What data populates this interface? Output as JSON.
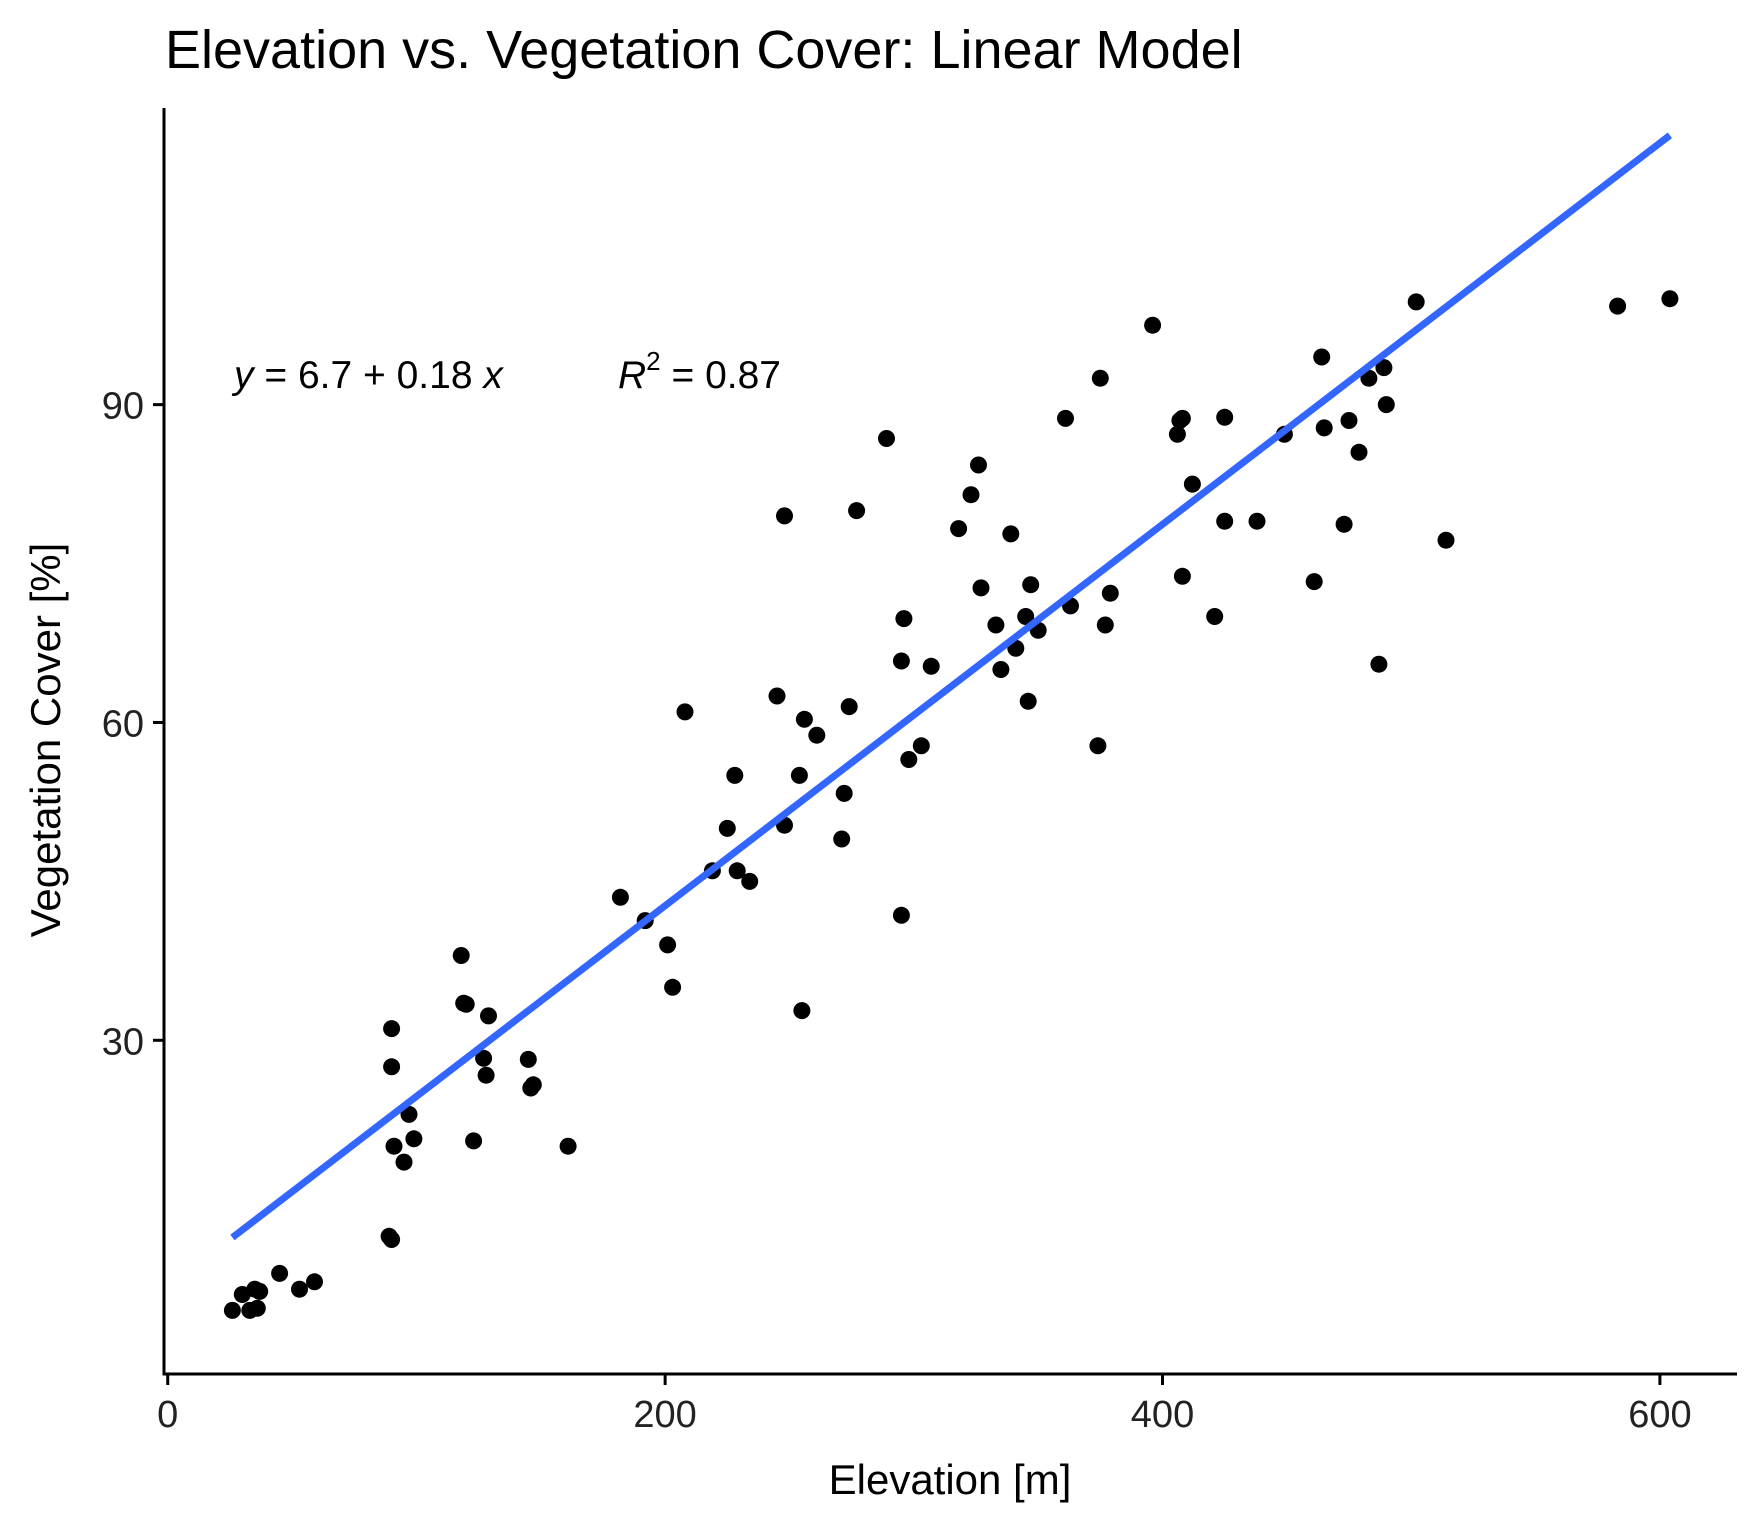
{
  "chart_data": {
    "type": "scatter",
    "title": "Elevation vs. Vegetation Cover: Linear Model",
    "xlabel": "Elevation [m]",
    "ylabel": "Vegetation Cover [%]",
    "xlim": [
      -1.5,
      631
    ],
    "ylim": [
      -1.5,
      118
    ],
    "xticks": [
      0,
      200,
      400,
      600
    ],
    "yticks": [
      30,
      60,
      90
    ],
    "grid": false,
    "point_color": "#000000",
    "line_color": "#3366FF",
    "regression": {
      "intercept": 6.7,
      "slope": 0.18,
      "r_squared": 0.87,
      "x_range": [
        26,
        604
      ],
      "equation_parts": {
        "y": "y",
        "eq": " = 6.7 + 0.18 ",
        "x": "x"
      },
      "r2_parts": {
        "r": "R",
        "sup": "2",
        "eq": " = 0.87"
      }
    },
    "points": [
      [
        26,
        4.5
      ],
      [
        30,
        6
      ],
      [
        33,
        4.5
      ],
      [
        35,
        6.5
      ],
      [
        36,
        4.7
      ],
      [
        37,
        6.3
      ],
      [
        45,
        8.0
      ],
      [
        53,
        6.5
      ],
      [
        59,
        7.2
      ],
      [
        89,
        11.5
      ],
      [
        90,
        11.2
      ],
      [
        90,
        27.5
      ],
      [
        90,
        31.1
      ],
      [
        91,
        20.0
      ],
      [
        95,
        18.5
      ],
      [
        97,
        23.0
      ],
      [
        99,
        20.7
      ],
      [
        118,
        38.0
      ],
      [
        119,
        33.5
      ],
      [
        120,
        33.4
      ],
      [
        123,
        20.5
      ],
      [
        127,
        28.3
      ],
      [
        128,
        26.7
      ],
      [
        129,
        32.3
      ],
      [
        145,
        28.2
      ],
      [
        146,
        25.5
      ],
      [
        147,
        25.8
      ],
      [
        161,
        20.0
      ],
      [
        182,
        43.5
      ],
      [
        192,
        41.3
      ],
      [
        201,
        39.0
      ],
      [
        203,
        35.0
      ],
      [
        208,
        61.0
      ],
      [
        219,
        46.0
      ],
      [
        225,
        50.0
      ],
      [
        228,
        55.0
      ],
      [
        229,
        46.0
      ],
      [
        234,
        45.0
      ],
      [
        245,
        62.5
      ],
      [
        248,
        50.3
      ],
      [
        248,
        79.5
      ],
      [
        254,
        55.0
      ],
      [
        255,
        32.8
      ],
      [
        256,
        60.3
      ],
      [
        261,
        58.8
      ],
      [
        271,
        49.0
      ],
      [
        272,
        53.3
      ],
      [
        274,
        61.5
      ],
      [
        277,
        80.0
      ],
      [
        289,
        86.8
      ],
      [
        295,
        41.8
      ],
      [
        295,
        65.8
      ],
      [
        296,
        69.8
      ],
      [
        298,
        56.5
      ],
      [
        303,
        57.8
      ],
      [
        307,
        65.3
      ],
      [
        318,
        78.3
      ],
      [
        323,
        81.5
      ],
      [
        326,
        84.3
      ],
      [
        327,
        72.7
      ],
      [
        333,
        69.2
      ],
      [
        335,
        65.0
      ],
      [
        339,
        77.8
      ],
      [
        341,
        67.0
      ],
      [
        345,
        70.0
      ],
      [
        346,
        62.0
      ],
      [
        347,
        73.0
      ],
      [
        350,
        68.7
      ],
      [
        361,
        88.7
      ],
      [
        363,
        71.0
      ],
      [
        374,
        57.8
      ],
      [
        375,
        92.5
      ],
      [
        377,
        69.2
      ],
      [
        379,
        72.2
      ],
      [
        396,
        97.5
      ],
      [
        406,
        87.2
      ],
      [
        407,
        88.5
      ],
      [
        408,
        88.7
      ],
      [
        408,
        73.8
      ],
      [
        412,
        82.5
      ],
      [
        421,
        70.0
      ],
      [
        425,
        88.8
      ],
      [
        425,
        79.0
      ],
      [
        438,
        79.0
      ],
      [
        449,
        87.2
      ],
      [
        461,
        73.3
      ],
      [
        464,
        94.5
      ],
      [
        465,
        87.8
      ],
      [
        473,
        78.7
      ],
      [
        475,
        88.5
      ],
      [
        479,
        85.5
      ],
      [
        483,
        92.5
      ],
      [
        487,
        65.5
      ],
      [
        489,
        93.5
      ],
      [
        490,
        90.0
      ],
      [
        502,
        99.7
      ],
      [
        514,
        77.2
      ],
      [
        583,
        99.3
      ],
      [
        604,
        100.0
      ]
    ]
  }
}
